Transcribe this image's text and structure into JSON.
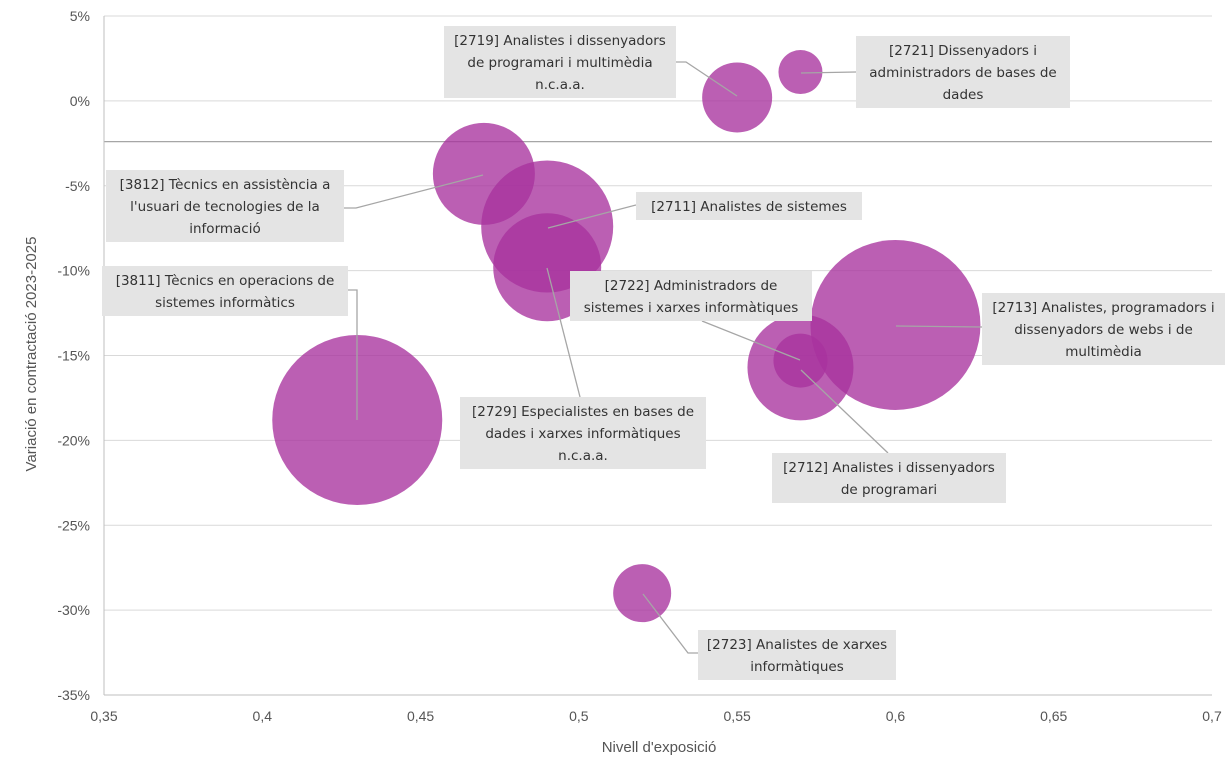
{
  "chart_data": {
    "type": "scatter",
    "subtype": "bubble",
    "title": "",
    "xlabel": "Nivell d'exposició",
    "ylabel": "Variació en contractació 2023-2025",
    "xlim": [
      0.35,
      0.7
    ],
    "ylim": [
      -35,
      5
    ],
    "x_ticks": [
      {
        "value": 0.35,
        "label": "0,35"
      },
      {
        "value": 0.4,
        "label": "0,4"
      },
      {
        "value": 0.45,
        "label": "0,45"
      },
      {
        "value": 0.5,
        "label": "0,5"
      },
      {
        "value": 0.55,
        "label": "0,55"
      },
      {
        "value": 0.6,
        "label": "0,6"
      },
      {
        "value": 0.65,
        "label": "0,65"
      },
      {
        "value": 0.7,
        "label": "0,7"
      }
    ],
    "y_ticks": [
      {
        "value": 5,
        "label": "5%"
      },
      {
        "value": 0,
        "label": "0%"
      },
      {
        "value": -5,
        "label": "-5%"
      },
      {
        "value": -10,
        "label": "-10%"
      },
      {
        "value": -15,
        "label": "-15%"
      },
      {
        "value": -20,
        "label": "-20%"
      },
      {
        "value": -25,
        "label": "-25%"
      },
      {
        "value": -30,
        "label": "-30%"
      },
      {
        "value": -35,
        "label": "-35%"
      }
    ],
    "reference_line_y": -2.4,
    "grid": true,
    "bubble_color": "#a8329e",
    "points": [
      {
        "code": "2719",
        "lines": [
          "[2719] Analistes i dissenyadors",
          "de programari i multimèdia",
          "n.c.a.a."
        ],
        "x": 0.55,
        "y": 0.2,
        "size": 35,
        "label_anchor": "left"
      },
      {
        "code": "2721",
        "lines": [
          "[2721] Dissenyadors i",
          "administradors de bases de",
          "dades"
        ],
        "x": 0.57,
        "y": 1.7,
        "size": 22,
        "label_anchor": "right"
      },
      {
        "code": "3812",
        "lines": [
          "[3812] Tècnics en assistència a",
          "l'usuari de tecnologies de la",
          "informació"
        ],
        "x": 0.47,
        "y": -4.3,
        "size": 51,
        "label_anchor": "left"
      },
      {
        "code": "2711",
        "lines": [
          "[2711] Analistes de sistemes"
        ],
        "x": 0.49,
        "y": -7.4,
        "size": 66,
        "label_anchor": "right"
      },
      {
        "code": "2729",
        "lines": [
          "[2729] Especialistes en bases de",
          "dades i xarxes informàtiques",
          "n.c.a.a."
        ],
        "x": 0.49,
        "y": -9.8,
        "size": 54,
        "label_anchor": "below"
      },
      {
        "code": "3811",
        "lines": [
          "[3811] Tècnics en operacions de",
          "sistemes informàtics"
        ],
        "x": 0.43,
        "y": -18.8,
        "size": 85,
        "label_anchor": "above"
      },
      {
        "code": "2713",
        "lines": [
          "[2713] Analistes, programadors i",
          "dissenyadors de webs i de",
          "multimèdia"
        ],
        "x": 0.6,
        "y": -13.2,
        "size": 85,
        "label_anchor": "right"
      },
      {
        "code": "2712",
        "lines": [
          "[2712] Analistes i dissenyadors",
          "de programari"
        ],
        "x": 0.57,
        "y": -15.7,
        "size": 53,
        "label_anchor": "below"
      },
      {
        "code": "2722",
        "lines": [
          "[2722] Administradors de",
          "sistemes i xarxes informàtiques"
        ],
        "x": 0.57,
        "y": -15.3,
        "size": 27,
        "label_anchor": "above"
      },
      {
        "code": "2723",
        "lines": [
          "[2723] Analistes de xarxes",
          "informàtiques"
        ],
        "x": 0.52,
        "y": -29.0,
        "size": 29,
        "label_anchor": "right"
      }
    ]
  }
}
